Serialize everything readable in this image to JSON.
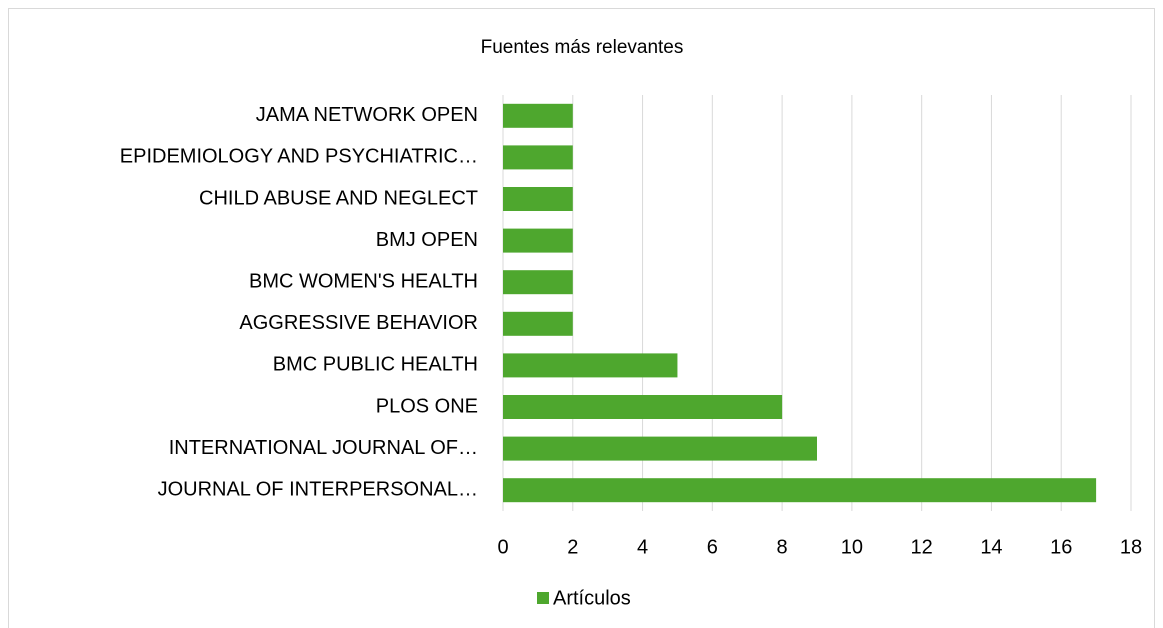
{
  "chart_data": {
    "type": "bar",
    "orientation": "horizontal",
    "title": "Fuentes más relevantes",
    "categories": [
      "JAMA NETWORK OPEN",
      "EPIDEMIOLOGY AND PSYCHIATRIC…",
      "CHILD ABUSE AND NEGLECT",
      "BMJ OPEN",
      "BMC WOMEN'S HEALTH",
      "AGGRESSIVE BEHAVIOR",
      "BMC PUBLIC HEALTH",
      "PLOS ONE",
      "INTERNATIONAL JOURNAL OF…",
      "JOURNAL OF INTERPERSONAL…"
    ],
    "series": [
      {
        "name": "Artículos",
        "color": "#4ea72e",
        "values": [
          2,
          2,
          2,
          2,
          2,
          2,
          5,
          8,
          9,
          17
        ]
      }
    ],
    "xlim": [
      0,
      18
    ],
    "xticks": [
      0,
      2,
      4,
      6,
      8,
      10,
      12,
      14,
      16,
      18
    ],
    "grid": true,
    "legend": "bottom"
  }
}
